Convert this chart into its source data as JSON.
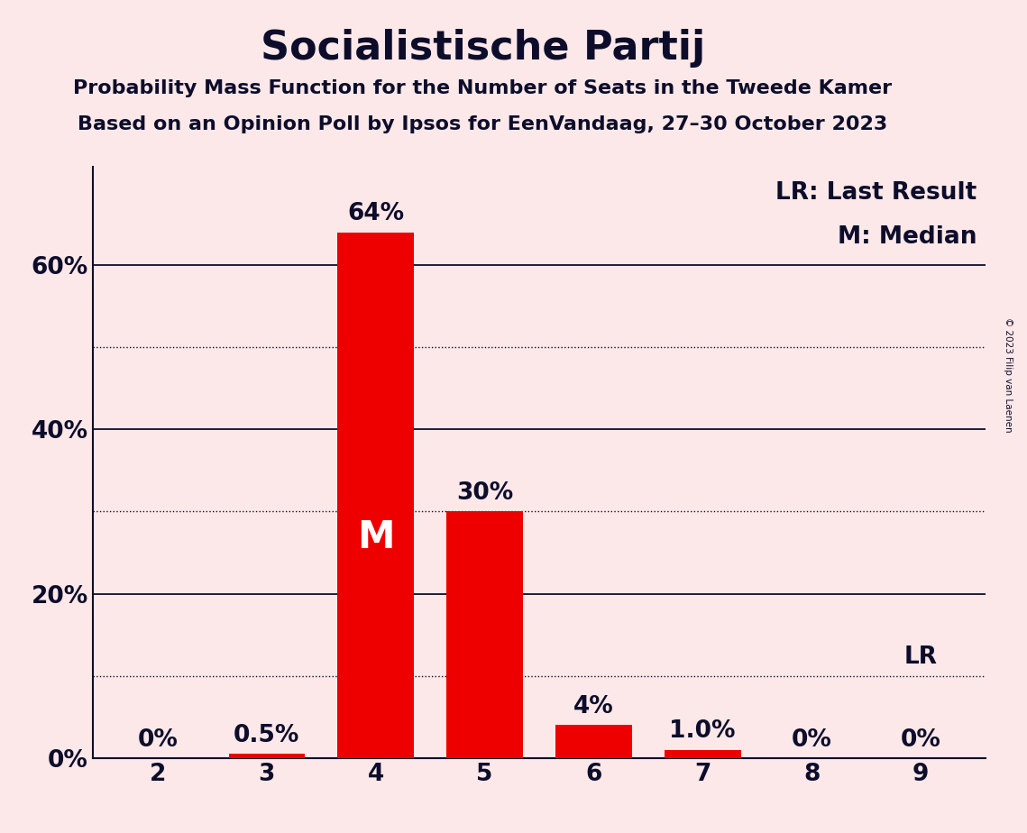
{
  "title": "Socialistische Partij",
  "subtitle1": "Probability Mass Function for the Number of Seats in the Tweede Kamer",
  "subtitle2": "Based on an Opinion Poll by Ipsos for EenVandaag, 27–30 October 2023",
  "copyright": "© 2023 Filip van Laenen",
  "seats": [
    2,
    3,
    4,
    5,
    6,
    7,
    8,
    9
  ],
  "values": [
    0.0,
    0.5,
    64.0,
    30.0,
    4.0,
    1.0,
    0.0,
    0.0
  ],
  "labels": [
    "0%",
    "0.5%",
    "64%",
    "30%",
    "4%",
    "1.0%",
    "0%",
    "0%"
  ],
  "median_seat": 4,
  "last_result_seat": 9,
  "bar_color": "#ee0000",
  "background_color": "#fce8e8",
  "text_color": "#0d0d2b",
  "legend_lr": "LR: Last Result",
  "legend_m": "M: Median",
  "yticks_solid": [
    0,
    20,
    40,
    60
  ],
  "yticks_dotted": [
    10,
    30,
    50
  ],
  "ylim": [
    0,
    72
  ],
  "title_fontsize": 32,
  "subtitle_fontsize": 16,
  "label_fontsize": 19,
  "tick_fontsize": 19,
  "legend_fontsize": 19
}
